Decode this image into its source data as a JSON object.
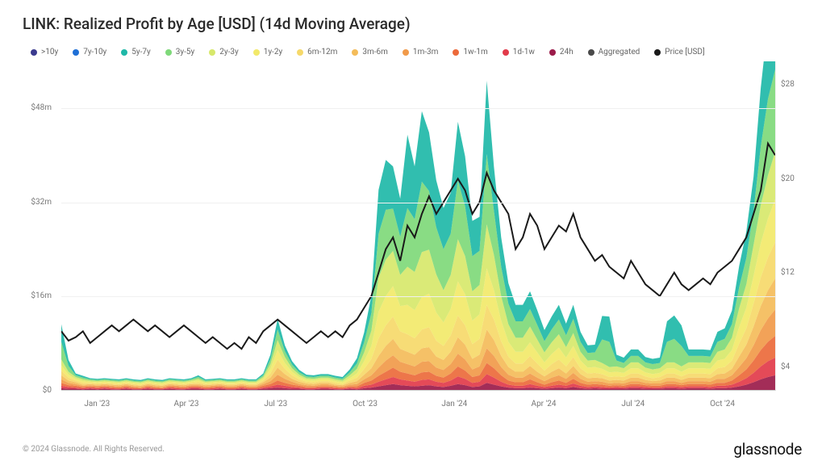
{
  "title": "LINK: Realized Profit by Age [USD] (14d Moving Average)",
  "footer_text": "© 2024 Glassnode. All Rights Reserved.",
  "brand_text": "glassnode",
  "left_axis": {
    "label_prefix": "$",
    "ticks": [
      0,
      16,
      32,
      48
    ],
    "tick_labels": [
      "$0",
      "$16m",
      "$32m",
      "$48m"
    ],
    "max": 56
  },
  "right_axis": {
    "ticks": [
      4,
      12,
      20,
      28
    ],
    "tick_labels": [
      "$4",
      "$12",
      "$20",
      "$28"
    ],
    "min": 2,
    "max": 30
  },
  "x_axis": {
    "labels": [
      "Jan '23",
      "Apr '23",
      "Jul '23",
      "Oct '23",
      "Jan '24",
      "Apr '24",
      "Jul '24",
      "Oct '24"
    ],
    "positions_pct": [
      5,
      17.5,
      30,
      42.5,
      55,
      67.5,
      80,
      92.5
    ]
  },
  "legend": [
    {
      "label": ">10y",
      "color": "#3b3b8f"
    },
    {
      "label": "7y-10y",
      "color": "#1f6fd6"
    },
    {
      "label": "5y-7y",
      "color": "#1fb8a8"
    },
    {
      "label": "3y-5y",
      "color": "#7fd97a"
    },
    {
      "label": "2y-3y",
      "color": "#d7e86b"
    },
    {
      "label": "1y-2y",
      "color": "#f2e96a"
    },
    {
      "label": "6m-12m",
      "color": "#f6d96a"
    },
    {
      "label": "3m-6m",
      "color": "#f4bc5a"
    },
    {
      "label": "1m-3m",
      "color": "#f19a4a"
    },
    {
      "label": "1w-1m",
      "color": "#ec6a3b"
    },
    {
      "label": "1d-1w",
      "color": "#e23b4a"
    },
    {
      "label": "24h",
      "color": "#9b1b4a"
    },
    {
      "label": "Aggregated",
      "color": "#4a4a4a"
    },
    {
      "label": "Price [USD]",
      "color": "#1a1a1a"
    }
  ],
  "chart": {
    "n_points": 100,
    "stacked_series": [
      {
        "name": "24h",
        "color": "#9b1b4a",
        "values": [
          0.3,
          0.2,
          0.2,
          0.1,
          0.2,
          0.1,
          0.2,
          0.1,
          0.1,
          0.2,
          0.1,
          0.1,
          0.2,
          0.1,
          0.1,
          0.2,
          0.1,
          0.1,
          0.2,
          0.2,
          0.1,
          0.1,
          0.2,
          0.1,
          0.1,
          0.2,
          0.1,
          0.1,
          0.2,
          0.3,
          0.4,
          0.3,
          0.2,
          0.2,
          0.1,
          0.1,
          0.2,
          0.2,
          0.1,
          0.1,
          0.2,
          0.1,
          0.3,
          0.4,
          0.6,
          0.8,
          1.0,
          0.8,
          0.7,
          0.6,
          0.7,
          0.8,
          0.6,
          0.5,
          0.7,
          1.0,
          0.8,
          0.5,
          0.6,
          1.2,
          0.9,
          0.6,
          0.4,
          0.3,
          0.3,
          0.4,
          0.3,
          0.2,
          0.3,
          0.4,
          0.3,
          0.5,
          0.3,
          0.2,
          0.3,
          0.2,
          0.2,
          0.2,
          0.2,
          0.3,
          0.3,
          0.2,
          0.2,
          0.2,
          0.3,
          0.3,
          0.2,
          0.3,
          0.3,
          0.3,
          0.2,
          0.3,
          0.3,
          0.4,
          0.6,
          0.9,
          1.3,
          1.8,
          2.2,
          2.5
        ]
      },
      {
        "name": "1d-1w",
        "color": "#e23b4a",
        "values": [
          0.4,
          0.3,
          0.2,
          0.2,
          0.2,
          0.2,
          0.2,
          0.2,
          0.1,
          0.2,
          0.1,
          0.1,
          0.2,
          0.1,
          0.1,
          0.2,
          0.2,
          0.1,
          0.2,
          0.2,
          0.1,
          0.2,
          0.2,
          0.1,
          0.1,
          0.2,
          0.1,
          0.1,
          0.2,
          0.3,
          0.5,
          0.4,
          0.3,
          0.2,
          0.2,
          0.2,
          0.2,
          0.2,
          0.2,
          0.1,
          0.2,
          0.2,
          0.4,
          0.5,
          0.8,
          1.0,
          1.2,
          1.0,
          0.9,
          0.8,
          1.0,
          1.0,
          0.8,
          0.7,
          0.9,
          1.3,
          1.1,
          0.7,
          0.8,
          1.5,
          1.2,
          0.8,
          0.5,
          0.4,
          0.4,
          0.6,
          0.4,
          0.3,
          0.4,
          0.5,
          0.4,
          0.6,
          0.4,
          0.3,
          0.3,
          0.3,
          0.2,
          0.3,
          0.2,
          0.3,
          0.3,
          0.3,
          0.2,
          0.2,
          0.3,
          0.3,
          0.3,
          0.3,
          0.3,
          0.3,
          0.3,
          0.4,
          0.4,
          0.5,
          0.8,
          1.1,
          1.6,
          2.2,
          2.7,
          3.0
        ]
      },
      {
        "name": "1w-1m",
        "color": "#ec6a3b",
        "values": [
          0.5,
          0.3,
          0.3,
          0.2,
          0.2,
          0.2,
          0.2,
          0.2,
          0.2,
          0.2,
          0.2,
          0.1,
          0.2,
          0.2,
          0.1,
          0.2,
          0.2,
          0.2,
          0.2,
          0.2,
          0.2,
          0.2,
          0.2,
          0.2,
          0.2,
          0.2,
          0.2,
          0.2,
          0.3,
          0.4,
          0.7,
          0.5,
          0.4,
          0.3,
          0.2,
          0.2,
          0.2,
          0.2,
          0.2,
          0.2,
          0.2,
          0.3,
          0.5,
          0.7,
          1.0,
          1.3,
          1.6,
          1.3,
          1.2,
          1.1,
          1.3,
          1.3,
          1.0,
          0.9,
          1.2,
          1.7,
          1.4,
          1.0,
          1.1,
          1.9,
          1.6,
          1.1,
          0.7,
          0.6,
          0.6,
          0.8,
          0.6,
          0.4,
          0.6,
          0.7,
          0.5,
          0.8,
          0.5,
          0.4,
          0.4,
          0.4,
          0.3,
          0.3,
          0.3,
          0.4,
          0.4,
          0.3,
          0.3,
          0.3,
          0.4,
          0.4,
          0.3,
          0.4,
          0.4,
          0.4,
          0.4,
          0.5,
          0.5,
          0.7,
          1.1,
          1.5,
          2.1,
          2.8,
          3.3,
          3.7
        ]
      },
      {
        "name": "1m-3m",
        "color": "#f19a4a",
        "values": [
          0.6,
          0.4,
          0.3,
          0.2,
          0.2,
          0.2,
          0.2,
          0.2,
          0.2,
          0.2,
          0.2,
          0.2,
          0.2,
          0.2,
          0.2,
          0.2,
          0.2,
          0.2,
          0.2,
          0.2,
          0.2,
          0.2,
          0.2,
          0.2,
          0.2,
          0.2,
          0.2,
          0.2,
          0.3,
          0.5,
          1.0,
          0.7,
          0.5,
          0.3,
          0.3,
          0.2,
          0.3,
          0.3,
          0.2,
          0.2,
          0.3,
          0.4,
          0.6,
          0.9,
          1.4,
          1.9,
          2.1,
          1.7,
          1.6,
          1.5,
          1.8,
          1.8,
          1.4,
          1.3,
          1.6,
          2.2,
          1.9,
          1.3,
          1.5,
          2.5,
          2.1,
          1.4,
          1.0,
          0.8,
          0.8,
          1.0,
          0.8,
          0.6,
          0.8,
          0.9,
          0.7,
          1.0,
          0.7,
          0.5,
          0.5,
          0.5,
          0.4,
          0.4,
          0.4,
          0.5,
          0.5,
          0.4,
          0.4,
          0.4,
          0.5,
          0.5,
          0.4,
          0.5,
          0.5,
          0.5,
          0.5,
          0.7,
          0.7,
          0.9,
          1.4,
          1.9,
          2.6,
          3.4,
          4.0,
          4.5
        ]
      },
      {
        "name": "3m-6m",
        "color": "#f4bc5a",
        "values": [
          0.7,
          0.4,
          0.3,
          0.2,
          0.2,
          0.2,
          0.2,
          0.2,
          0.2,
          0.2,
          0.2,
          0.2,
          0.2,
          0.2,
          0.2,
          0.2,
          0.2,
          0.2,
          0.2,
          0.2,
          0.2,
          0.2,
          0.2,
          0.2,
          0.2,
          0.2,
          0.2,
          0.2,
          0.3,
          0.6,
          1.2,
          0.8,
          0.5,
          0.4,
          0.3,
          0.3,
          0.3,
          0.3,
          0.2,
          0.2,
          0.3,
          0.5,
          0.8,
          1.2,
          2.0,
          2.5,
          2.8,
          2.2,
          2.1,
          2.0,
          2.3,
          2.4,
          1.9,
          1.7,
          2.1,
          2.8,
          2.5,
          1.8,
          2.0,
          3.2,
          2.7,
          1.9,
          1.3,
          1.0,
          1.0,
          1.3,
          1.0,
          0.8,
          1.0,
          1.2,
          0.9,
          1.2,
          0.8,
          0.6,
          0.6,
          0.6,
          0.5,
          0.5,
          0.5,
          0.6,
          0.6,
          0.5,
          0.4,
          0.5,
          0.6,
          0.6,
          0.5,
          0.6,
          0.6,
          0.6,
          0.6,
          0.8,
          0.9,
          1.1,
          1.8,
          2.3,
          3.2,
          4.1,
          4.8,
          5.3
        ]
      },
      {
        "name": "6m-12m",
        "color": "#f6d96a",
        "values": [
          0.8,
          0.5,
          0.3,
          0.3,
          0.2,
          0.2,
          0.2,
          0.2,
          0.2,
          0.2,
          0.2,
          0.2,
          0.2,
          0.2,
          0.2,
          0.2,
          0.2,
          0.2,
          0.2,
          0.3,
          0.2,
          0.2,
          0.2,
          0.2,
          0.2,
          0.2,
          0.2,
          0.2,
          0.3,
          0.7,
          1.4,
          0.9,
          0.6,
          0.4,
          0.3,
          0.3,
          0.3,
          0.3,
          0.3,
          0.2,
          0.4,
          0.6,
          1.0,
          1.6,
          3.0,
          3.5,
          3.8,
          3.0,
          3.0,
          2.8,
          3.2,
          3.4,
          2.7,
          2.4,
          2.8,
          3.7,
          3.3,
          2.5,
          2.7,
          4.2,
          3.5,
          2.5,
          1.8,
          1.4,
          1.4,
          1.7,
          1.4,
          1.0,
          1.3,
          1.5,
          1.2,
          1.5,
          1.0,
          0.8,
          0.8,
          0.7,
          0.6,
          0.6,
          0.6,
          0.7,
          0.7,
          0.6,
          0.5,
          0.6,
          0.7,
          0.7,
          0.6,
          0.7,
          0.7,
          0.7,
          0.7,
          1.0,
          1.1,
          1.4,
          2.2,
          2.8,
          3.9,
          4.9,
          5.6,
          6.2
        ]
      },
      {
        "name": "1y-2y",
        "color": "#f2e96a",
        "values": [
          0.9,
          0.5,
          0.3,
          0.3,
          0.2,
          0.2,
          0.2,
          0.2,
          0.2,
          0.2,
          0.2,
          0.2,
          0.2,
          0.2,
          0.2,
          0.2,
          0.2,
          0.2,
          0.2,
          0.3,
          0.2,
          0.2,
          0.2,
          0.2,
          0.2,
          0.2,
          0.2,
          0.2,
          0.3,
          0.8,
          1.6,
          1.0,
          0.6,
          0.4,
          0.3,
          0.3,
          0.3,
          0.3,
          0.3,
          0.3,
          0.4,
          0.7,
          1.3,
          2.2,
          4.5,
          5.0,
          5.2,
          4.3,
          5.0,
          4.8,
          5.5,
          5.7,
          4.8,
          4.0,
          4.5,
          5.8,
          5.3,
          4.0,
          4.2,
          6.2,
          5.0,
          3.5,
          2.5,
          2.0,
          2.0,
          2.3,
          1.9,
          1.4,
          1.7,
          2.0,
          1.5,
          1.9,
          1.3,
          1.0,
          1.0,
          0.9,
          0.8,
          0.8,
          0.7,
          0.9,
          0.9,
          0.7,
          0.7,
          0.7,
          0.9,
          0.9,
          0.8,
          0.9,
          0.9,
          0.9,
          0.9,
          1.3,
          1.4,
          1.8,
          2.8,
          3.5,
          4.7,
          5.8,
          6.6,
          7.3
        ]
      },
      {
        "name": "2y-3y",
        "color": "#d7e86b",
        "values": [
          1.0,
          0.5,
          0.3,
          0.3,
          0.2,
          0.2,
          0.2,
          0.2,
          0.2,
          0.2,
          0.2,
          0.2,
          0.2,
          0.2,
          0.2,
          0.2,
          0.2,
          0.2,
          0.2,
          0.3,
          0.2,
          0.2,
          0.2,
          0.2,
          0.2,
          0.2,
          0.2,
          0.2,
          0.3,
          0.8,
          1.7,
          1.0,
          0.6,
          0.4,
          0.3,
          0.3,
          0.3,
          0.3,
          0.3,
          0.3,
          0.5,
          0.8,
          1.5,
          2.6,
          5.8,
          6.2,
          6.0,
          5.3,
          6.5,
          6.5,
          7.7,
          7.5,
          6.5,
          5.5,
          5.8,
          7.2,
          6.5,
          5.0,
          5.0,
          7.5,
          6.0,
          4.2,
          3.0,
          2.4,
          2.4,
          2.7,
          2.2,
          1.7,
          2.0,
          2.3,
          1.8,
          2.2,
          1.5,
          1.2,
          1.2,
          1.0,
          0.9,
          0.9,
          0.8,
          1.0,
          1.0,
          0.8,
          0.8,
          0.8,
          1.0,
          1.0,
          0.9,
          1.0,
          1.0,
          1.0,
          1.0,
          1.5,
          1.6,
          2.1,
          3.2,
          4.0,
          5.3,
          6.5,
          7.4,
          8.1
        ]
      },
      {
        "name": "3y-5y",
        "color": "#7fd97a",
        "values": [
          3.0,
          1.0,
          0.3,
          0.3,
          0.2,
          0.2,
          0.2,
          0.2,
          0.2,
          0.2,
          0.2,
          0.2,
          0.2,
          0.2,
          0.2,
          0.2,
          0.2,
          0.2,
          0.2,
          0.3,
          0.2,
          0.2,
          0.2,
          0.2,
          0.2,
          0.2,
          0.2,
          0.2,
          0.3,
          0.8,
          1.8,
          1.0,
          0.6,
          0.4,
          0.3,
          0.3,
          0.3,
          0.3,
          0.3,
          0.3,
          0.5,
          0.9,
          1.7,
          3.0,
          7.5,
          8.5,
          7.2,
          6.5,
          10.0,
          9.0,
          12.0,
          10.0,
          8.0,
          7.0,
          7.0,
          10.0,
          8.5,
          6.0,
          5.8,
          12.0,
          7.5,
          5.0,
          3.5,
          2.8,
          2.8,
          3.0,
          2.5,
          1.9,
          2.2,
          2.5,
          2.0,
          2.4,
          1.7,
          1.3,
          1.3,
          4.0,
          4.3,
          1.0,
          0.9,
          1.1,
          1.1,
          0.9,
          0.9,
          0.9,
          3.5,
          4.0,
          3.5,
          1.1,
          1.1,
          1.1,
          1.1,
          1.7,
          1.8,
          2.3,
          3.6,
          4.5,
          5.8,
          10.0,
          13.0,
          14.0
        ]
      },
      {
        "name": "5y-7y",
        "color": "#1fb8a8",
        "values": [
          3.0,
          1.0,
          0.3,
          0.3,
          0.2,
          0.2,
          0.2,
          0.2,
          0.2,
          0.2,
          0.2,
          0.2,
          0.2,
          0.2,
          0.2,
          0.2,
          0.2,
          0.2,
          0.2,
          0.3,
          0.2,
          0.2,
          0.2,
          0.2,
          0.2,
          0.2,
          0.2,
          0.2,
          0.3,
          0.8,
          1.8,
          1.0,
          0.6,
          0.4,
          0.3,
          0.3,
          0.3,
          0.3,
          0.3,
          0.3,
          0.5,
          0.9,
          1.7,
          3.0,
          7.5,
          8.5,
          7.2,
          6.5,
          12.5,
          9.0,
          12.0,
          10.0,
          8.0,
          7.0,
          7.0,
          10.0,
          8.5,
          6.0,
          5.8,
          12.5,
          7.5,
          5.0,
          3.5,
          2.8,
          2.8,
          3.0,
          2.5,
          1.9,
          2.2,
          2.5,
          2.0,
          2.4,
          1.7,
          1.3,
          1.3,
          4.0,
          4.3,
          1.0,
          0.9,
          1.1,
          1.1,
          0.9,
          0.9,
          0.9,
          3.5,
          4.0,
          3.5,
          1.1,
          1.1,
          1.1,
          1.1,
          1.7,
          1.8,
          2.3,
          3.6,
          4.5,
          5.8,
          10.0,
          13.0,
          14.0
        ]
      }
    ],
    "price_series": [
      7.0,
      6.2,
      6.5,
      7.0,
      6.0,
      6.5,
      7.0,
      7.5,
      7.0,
      7.5,
      8.0,
      7.5,
      7.0,
      7.5,
      7.0,
      6.5,
      7.0,
      7.5,
      7.0,
      6.5,
      6.0,
      6.5,
      6.0,
      5.5,
      6.0,
      5.5,
      6.5,
      6.0,
      7.0,
      7.5,
      8.0,
      7.5,
      7.0,
      6.5,
      6.0,
      6.5,
      7.0,
      6.5,
      7.0,
      6.5,
      7.5,
      8.0,
      9.0,
      10.0,
      12.0,
      14.0,
      15.0,
      13.0,
      16.0,
      15.0,
      17.0,
      18.5,
      17.0,
      18.0,
      19.0,
      20.0,
      19.0,
      17.0,
      18.0,
      20.5,
      19.0,
      18.0,
      17.0,
      14.0,
      15.0,
      17.0,
      16.0,
      14.0,
      15.0,
      16.0,
      15.5,
      17.0,
      15.0,
      14.0,
      13.0,
      13.5,
      12.5,
      12.0,
      11.5,
      13.0,
      12.0,
      11.0,
      10.5,
      10.0,
      11.0,
      12.0,
      11.0,
      10.5,
      11.0,
      11.5,
      11.0,
      12.0,
      12.5,
      13.0,
      14.0,
      15.0,
      17.0,
      19.0,
      23.0,
      22.0
    ]
  }
}
